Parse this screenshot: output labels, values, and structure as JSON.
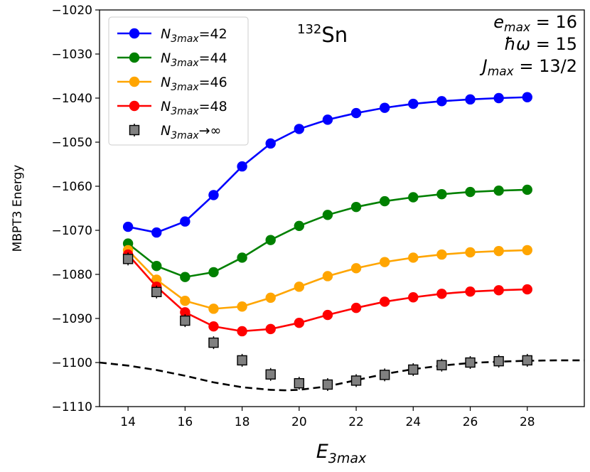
{
  "chart_data": {
    "type": "line",
    "title": "",
    "xlabel": "E",
    "xlabel_sub": "3max",
    "ylabel": "MBPT3 Energy",
    "xlim": [
      13,
      30
    ],
    "ylim": [
      -1110,
      -1020
    ],
    "xticks": [
      14,
      16,
      18,
      20,
      22,
      24,
      26,
      28
    ],
    "yticks": [
      -1110,
      -1100,
      -1090,
      -1080,
      -1070,
      -1060,
      -1050,
      -1040,
      -1030,
      -1020
    ],
    "ytick_labels": [
      "−1110",
      "−1100",
      "−1090",
      "−1080",
      "−1070",
      "−1060",
      "−1050",
      "−1040",
      "−1030",
      "−1020"
    ],
    "grid": false,
    "legend_position": "top-left",
    "x": [
      14,
      15,
      16,
      17,
      18,
      19,
      20,
      21,
      22,
      23,
      24,
      25,
      26,
      27,
      28
    ],
    "series": [
      {
        "name": "N_3max=42",
        "label_main": "N",
        "label_sub": "3max",
        "label_suffix": "=42",
        "color": "#0000ff",
        "values": [
          -1069.2,
          -1070.5,
          -1068.0,
          -1062.0,
          -1055.5,
          -1050.3,
          -1047.0,
          -1044.9,
          -1043.4,
          -1042.2,
          -1041.3,
          -1040.7,
          -1040.3,
          -1040.0,
          -1039.8
        ]
      },
      {
        "name": "N_3max=44",
        "label_main": "N",
        "label_sub": "3max",
        "label_suffix": "=44",
        "color": "#008000",
        "values": [
          -1073.0,
          -1078.1,
          -1080.6,
          -1079.5,
          -1076.2,
          -1072.2,
          -1069.0,
          -1066.5,
          -1064.7,
          -1063.4,
          -1062.5,
          -1061.8,
          -1061.3,
          -1061.0,
          -1060.8
        ]
      },
      {
        "name": "N_3max=46",
        "label_main": "N",
        "label_sub": "3max",
        "label_suffix": "=46",
        "color": "#ffa500",
        "values": [
          -1074.5,
          -1081.2,
          -1086.0,
          -1087.8,
          -1087.3,
          -1085.3,
          -1082.8,
          -1080.4,
          -1078.6,
          -1077.2,
          -1076.2,
          -1075.5,
          -1075.0,
          -1074.7,
          -1074.5
        ]
      },
      {
        "name": "N_3max=48",
        "label_main": "N",
        "label_sub": "3max",
        "label_suffix": "=48",
        "color": "#ff0000",
        "values": [
          -1075.5,
          -1082.8,
          -1088.6,
          -1091.8,
          -1092.9,
          -1092.4,
          -1091.0,
          -1089.2,
          -1087.6,
          -1086.2,
          -1085.2,
          -1084.4,
          -1083.9,
          -1083.6,
          -1083.4
        ]
      }
    ],
    "extrapolated": {
      "name": "N_3max→∞",
      "label_main": "N",
      "label_sub": "3max",
      "label_suffix": "→∞",
      "color": "#808080",
      "values": [
        -1076.5,
        -1084.0,
        -1090.5,
        -1095.5,
        -1099.5,
        -1102.7,
        -1104.7,
        -1105.0,
        -1104.1,
        -1102.8,
        -1101.6,
        -1100.6,
        -1100.0,
        -1099.7,
        -1099.5
      ]
    },
    "fit_curve": {
      "style": "dashed",
      "x": [
        13,
        14,
        15,
        16,
        17,
        18,
        19,
        19.5,
        20,
        21,
        22,
        23,
        24,
        25,
        26,
        27,
        28,
        29,
        30
      ],
      "values": [
        -1100.0,
        -1100.7,
        -1101.7,
        -1103.0,
        -1104.5,
        -1105.6,
        -1106.2,
        -1106.3,
        -1106.2,
        -1105.4,
        -1104.0,
        -1102.6,
        -1101.5,
        -1100.7,
        -1100.1,
        -1099.8,
        -1099.6,
        -1099.5,
        -1099.5
      ]
    },
    "annotations": {
      "nucleus_mass": "132",
      "nucleus_symbol": "Sn",
      "params": [
        {
          "main": "e",
          "sub": "max",
          "value": " = 16"
        },
        {
          "main": "ħω",
          "sub": "",
          "value": " = 15"
        },
        {
          "main": "J",
          "sub": "max",
          "value": " = 13/2"
        }
      ]
    }
  }
}
